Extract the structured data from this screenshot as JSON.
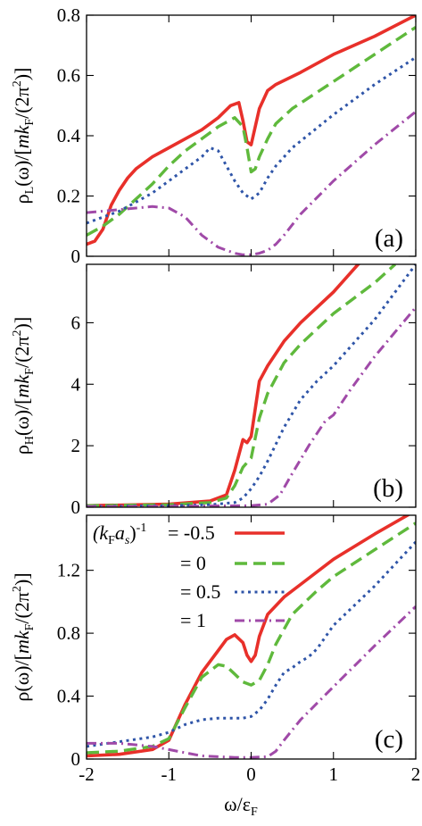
{
  "colors": {
    "r1": "#e8302a",
    "r2": "#5fb93c",
    "r3": "#2f55a8",
    "r4": "#a04aa8"
  },
  "x_axis": {
    "label_main": "ω/ε",
    "label_sub": "F",
    "ticks": [
      -2,
      -1,
      0,
      1,
      2
    ],
    "tick_labels": [
      "-2",
      "-1",
      "0",
      "1",
      "2"
    ]
  },
  "legend": {
    "title_prefix": "(k",
    "title_sub1": "F",
    "title_mid": "a",
    "title_sub2": "s",
    "title_suffix": ")",
    "title_sup": "-1",
    "entries": [
      "= -0.5",
      "= 0",
      "= 0.5",
      "= 1"
    ]
  },
  "chart_data": [
    {
      "type": "line",
      "panel_tag": "(a)",
      "ylabel": {
        "pre": "ρ",
        "sub": "L",
        "mid": "(ω)/[",
        "mk": "mk",
        "sub2": "F",
        "post": "/(2π",
        "sup": "2",
        "end": ")]"
      },
      "xlim": [
        -2,
        2
      ],
      "ylim": [
        0,
        0.8
      ],
      "yticks": [
        0,
        0.2,
        0.4,
        0.6,
        0.8
      ],
      "ytick_labels": [
        "0",
        "0.2",
        "0.4",
        "0.6",
        "0.8"
      ],
      "series": [
        {
          "name": "-0.5",
          "x": [
            -2,
            -1.9,
            -1.8,
            -1.7,
            -1.6,
            -1.5,
            -1.4,
            -1.2,
            -1.0,
            -0.8,
            -0.6,
            -0.4,
            -0.25,
            -0.15,
            -0.1,
            -0.05,
            0.0,
            0.05,
            0.1,
            0.2,
            0.3,
            0.6,
            1.0,
            1.5,
            2.0
          ],
          "y": [
            0.04,
            0.05,
            0.09,
            0.17,
            0.22,
            0.26,
            0.29,
            0.33,
            0.36,
            0.39,
            0.42,
            0.46,
            0.5,
            0.51,
            0.45,
            0.38,
            0.37,
            0.43,
            0.49,
            0.55,
            0.57,
            0.61,
            0.67,
            0.73,
            0.8
          ]
        },
        {
          "name": "0",
          "x": [
            -2,
            -1.8,
            -1.6,
            -1.4,
            -1.2,
            -1.0,
            -0.8,
            -0.6,
            -0.4,
            -0.2,
            -0.1,
            -0.05,
            0.0,
            0.05,
            0.1,
            0.2,
            0.3,
            0.5,
            1.0,
            1.5,
            2.0
          ],
          "y": [
            0.07,
            0.1,
            0.14,
            0.19,
            0.24,
            0.3,
            0.35,
            0.39,
            0.43,
            0.46,
            0.43,
            0.36,
            0.28,
            0.29,
            0.33,
            0.39,
            0.44,
            0.49,
            0.58,
            0.67,
            0.76
          ]
        },
        {
          "name": "0.5",
          "x": [
            -2,
            -1.8,
            -1.6,
            -1.4,
            -1.2,
            -1.0,
            -0.8,
            -0.6,
            -0.5,
            -0.4,
            -0.3,
            -0.2,
            -0.1,
            0.0,
            0.1,
            0.2,
            0.3,
            0.5,
            1.0,
            1.5,
            2.0
          ],
          "y": [
            0.11,
            0.13,
            0.15,
            0.18,
            0.21,
            0.25,
            0.29,
            0.33,
            0.36,
            0.35,
            0.3,
            0.25,
            0.21,
            0.19,
            0.21,
            0.26,
            0.3,
            0.36,
            0.47,
            0.57,
            0.66
          ]
        },
        {
          "name": "1",
          "x": [
            -2,
            -1.8,
            -1.6,
            -1.4,
            -1.2,
            -1.0,
            -0.8,
            -0.6,
            -0.4,
            -0.2,
            -0.1,
            0.0,
            0.1,
            0.2,
            0.3,
            0.4,
            0.6,
            1.0,
            1.5,
            2.0
          ],
          "y": [
            0.145,
            0.15,
            0.155,
            0.16,
            0.165,
            0.16,
            0.13,
            0.07,
            0.03,
            0.01,
            0.005,
            0.005,
            0.01,
            0.02,
            0.04,
            0.07,
            0.14,
            0.25,
            0.37,
            0.48
          ]
        }
      ]
    },
    {
      "type": "line",
      "panel_tag": "(b)",
      "ylabel": {
        "pre": "ρ",
        "sub": "H",
        "mid": "(ω)/[",
        "mk": "mk",
        "sub2": "F",
        "post": "/(2π",
        "sup": "2",
        "end": ")]"
      },
      "xlim": [
        -2,
        2
      ],
      "ylim": [
        0,
        7.9
      ],
      "yticks": [
        0,
        2,
        4,
        6
      ],
      "ytick_labels": [
        "0",
        "2",
        "4",
        "6"
      ],
      "series": [
        {
          "name": "-0.5",
          "x": [
            -2,
            -1.0,
            -0.5,
            -0.3,
            -0.2,
            -0.1,
            -0.05,
            0.0,
            0.05,
            0.1,
            0.2,
            0.4,
            0.6,
            1.0,
            1.3,
            1.5
          ],
          "y": [
            0.05,
            0.1,
            0.2,
            0.4,
            1.2,
            2.2,
            2.1,
            2.3,
            3.2,
            4.1,
            4.6,
            5.4,
            6.0,
            7.0,
            7.9,
            8.3
          ]
        },
        {
          "name": "0",
          "x": [
            -2,
            -1.0,
            -0.5,
            -0.3,
            -0.2,
            -0.1,
            0.0,
            0.1,
            0.2,
            0.4,
            0.6,
            1.0,
            1.5,
            1.75
          ],
          "y": [
            0.05,
            0.08,
            0.15,
            0.3,
            0.7,
            1.3,
            1.6,
            2.9,
            3.7,
            4.7,
            5.3,
            6.3,
            7.3,
            7.9
          ]
        },
        {
          "name": "0.5",
          "x": [
            -2,
            -1.0,
            -0.5,
            -0.2,
            -0.1,
            0.0,
            0.1,
            0.2,
            0.4,
            0.6,
            0.8,
            1.0,
            1.5,
            2.0
          ],
          "y": [
            0.03,
            0.05,
            0.08,
            0.15,
            0.3,
            0.6,
            1.0,
            1.5,
            2.6,
            3.5,
            4.1,
            4.6,
            6.1,
            7.9
          ]
        },
        {
          "name": "1",
          "x": [
            -2,
            -1.0,
            -0.5,
            0.0,
            0.2,
            0.35,
            0.5,
            0.7,
            0.9,
            1.0,
            1.2,
            1.5,
            2.0
          ],
          "y": [
            0.02,
            0.03,
            0.04,
            0.05,
            0.1,
            0.4,
            1.1,
            2.0,
            2.8,
            3.0,
            3.8,
            4.9,
            6.5
          ]
        }
      ]
    },
    {
      "type": "line",
      "panel_tag": "(c)",
      "ylabel": {
        "pre": "ρ",
        "sub": "",
        "mid": "(ω)/[",
        "mk": "mk",
        "sub2": "F",
        "post": "/(2π",
        "sup": "2",
        "end": ")]"
      },
      "xlim": [
        -2,
        2
      ],
      "ylim": [
        0,
        1.55
      ],
      "yticks": [
        0,
        0.4,
        0.8,
        1.2
      ],
      "ytick_labels": [
        "0",
        "0.4",
        "0.8",
        "1.2"
      ],
      "series": [
        {
          "name": "-0.5",
          "x": [
            -2,
            -1.6,
            -1.2,
            -1.0,
            -0.8,
            -0.6,
            -0.4,
            -0.3,
            -0.2,
            -0.1,
            -0.05,
            0.0,
            0.05,
            0.1,
            0.2,
            0.4,
            0.6,
            1.0,
            1.5,
            2.0
          ],
          "y": [
            0.02,
            0.03,
            0.06,
            0.12,
            0.35,
            0.55,
            0.69,
            0.76,
            0.79,
            0.74,
            0.66,
            0.62,
            0.66,
            0.78,
            0.92,
            1.03,
            1.11,
            1.27,
            1.43,
            1.58
          ]
        },
        {
          "name": "0",
          "x": [
            -2,
            -1.6,
            -1.2,
            -1.0,
            -0.8,
            -0.6,
            -0.4,
            -0.3,
            -0.2,
            -0.1,
            0.0,
            0.1,
            0.2,
            0.3,
            0.5,
            0.8,
            1.0,
            1.5,
            2.0
          ],
          "y": [
            0.04,
            0.05,
            0.08,
            0.13,
            0.33,
            0.52,
            0.6,
            0.59,
            0.54,
            0.49,
            0.47,
            0.5,
            0.6,
            0.73,
            0.92,
            1.07,
            1.16,
            1.33,
            1.5
          ]
        },
        {
          "name": "0.5",
          "x": [
            -2,
            -1.6,
            -1.2,
            -1.0,
            -0.8,
            -0.6,
            -0.4,
            -0.2,
            -0.1,
            0.0,
            0.1,
            0.2,
            0.3,
            0.4,
            0.5,
            0.6,
            0.7,
            0.8,
            1.0,
            1.5,
            2.0
          ],
          "y": [
            0.08,
            0.11,
            0.14,
            0.17,
            0.22,
            0.25,
            0.26,
            0.26,
            0.26,
            0.27,
            0.31,
            0.38,
            0.47,
            0.55,
            0.58,
            0.62,
            0.65,
            0.7,
            0.85,
            1.1,
            1.38
          ]
        },
        {
          "name": "1",
          "x": [
            -2,
            -1.6,
            -1.2,
            -1.0,
            -0.8,
            -0.6,
            -0.4,
            -0.2,
            0.0,
            0.2,
            0.3,
            0.4,
            0.6,
            1.0,
            1.5,
            2.0
          ],
          "y": [
            0.1,
            0.1,
            0.08,
            0.06,
            0.04,
            0.02,
            0.015,
            0.01,
            0.01,
            0.015,
            0.05,
            0.12,
            0.25,
            0.46,
            0.72,
            0.97
          ]
        }
      ]
    }
  ]
}
